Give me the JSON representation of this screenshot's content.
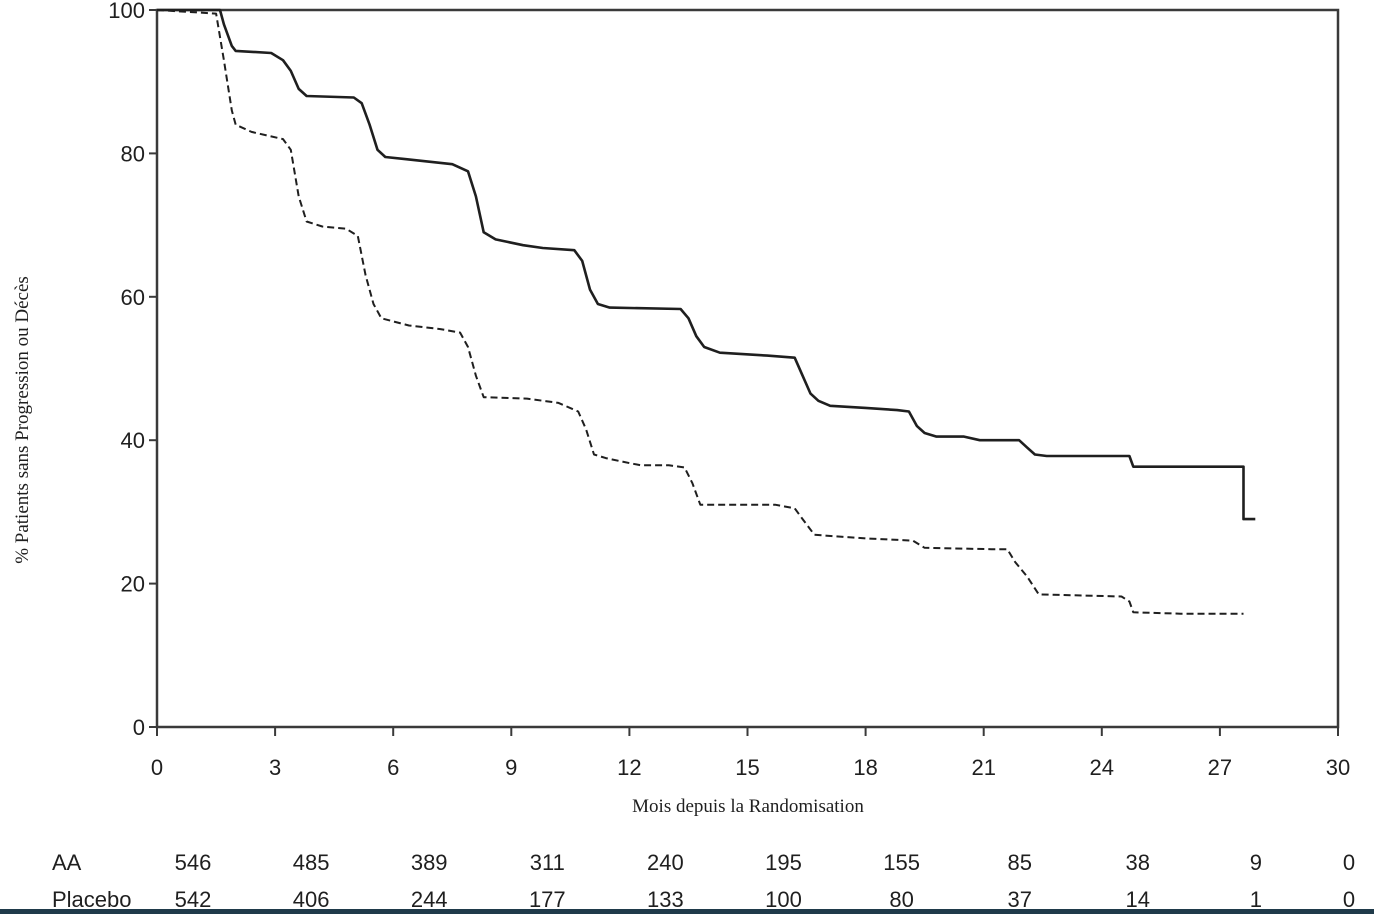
{
  "chart_data": {
    "type": "line",
    "title": "",
    "xlabel": "Mois depuis la Randomisation",
    "ylabel": "% Patients sans Progression ou Décès",
    "xlim": [
      0,
      30
    ],
    "ylim": [
      0,
      100
    ],
    "x_ticks": [
      0,
      3,
      6,
      9,
      12,
      15,
      18,
      21,
      24,
      27,
      30
    ],
    "y_ticks": [
      0,
      20,
      40,
      60,
      80,
      100
    ],
    "grid": false,
    "legend": "none",
    "series": [
      {
        "line_style": "solid",
        "color": "#1f1f1f",
        "points": [
          [
            0,
            100
          ],
          [
            1.6,
            100
          ],
          [
            1.7,
            98
          ],
          [
            1.9,
            95
          ],
          [
            2.0,
            94.3
          ],
          [
            2.9,
            94
          ],
          [
            3.2,
            93
          ],
          [
            3.4,
            91.5
          ],
          [
            3.6,
            89
          ],
          [
            3.8,
            88
          ],
          [
            5.0,
            87.8
          ],
          [
            5.2,
            87
          ],
          [
            5.4,
            84
          ],
          [
            5.6,
            80.5
          ],
          [
            5.8,
            79.5
          ],
          [
            6.3,
            79.2
          ],
          [
            7.5,
            78.5
          ],
          [
            7.9,
            77.5
          ],
          [
            8.1,
            74
          ],
          [
            8.3,
            69
          ],
          [
            8.6,
            68
          ],
          [
            9.3,
            67.2
          ],
          [
            9.8,
            66.8
          ],
          [
            10.6,
            66.5
          ],
          [
            10.8,
            65
          ],
          [
            11.0,
            61
          ],
          [
            11.2,
            59
          ],
          [
            11.5,
            58.5
          ],
          [
            13.3,
            58.3
          ],
          [
            13.5,
            57
          ],
          [
            13.7,
            54.5
          ],
          [
            13.9,
            53
          ],
          [
            14.3,
            52.2
          ],
          [
            15.5,
            51.8
          ],
          [
            16.2,
            51.5
          ],
          [
            16.4,
            49
          ],
          [
            16.6,
            46.5
          ],
          [
            16.8,
            45.5
          ],
          [
            17.1,
            44.8
          ],
          [
            18.0,
            44.5
          ],
          [
            18.8,
            44.2
          ],
          [
            19.1,
            44
          ],
          [
            19.3,
            42
          ],
          [
            19.5,
            41
          ],
          [
            19.8,
            40.5
          ],
          [
            20.5,
            40.5
          ],
          [
            20.9,
            40
          ],
          [
            21.9,
            40
          ],
          [
            22.1,
            39
          ],
          [
            22.3,
            38
          ],
          [
            22.6,
            37.8
          ],
          [
            24.7,
            37.8
          ],
          [
            24.8,
            36.3
          ],
          [
            27.1,
            36.3
          ],
          [
            27.6,
            36.3
          ],
          [
            27.6,
            29
          ],
          [
            27.9,
            29
          ]
        ]
      },
      {
        "line_style": "dashed",
        "color": "#1f1f1f",
        "points": [
          [
            0,
            100
          ],
          [
            1.5,
            99.5
          ],
          [
            1.7,
            93
          ],
          [
            1.9,
            86
          ],
          [
            2.0,
            84
          ],
          [
            2.4,
            83
          ],
          [
            2.8,
            82.5
          ],
          [
            3.2,
            82
          ],
          [
            3.4,
            80.5
          ],
          [
            3.6,
            74
          ],
          [
            3.8,
            70.5
          ],
          [
            4.2,
            69.8
          ],
          [
            4.8,
            69.5
          ],
          [
            5.1,
            68.5
          ],
          [
            5.3,
            63
          ],
          [
            5.5,
            59
          ],
          [
            5.7,
            57
          ],
          [
            6.4,
            56
          ],
          [
            7.2,
            55.5
          ],
          [
            7.7,
            55
          ],
          [
            7.9,
            53
          ],
          [
            8.1,
            49
          ],
          [
            8.3,
            46
          ],
          [
            9.4,
            45.8
          ],
          [
            10.2,
            45.2
          ],
          [
            10.7,
            44
          ],
          [
            10.9,
            41.5
          ],
          [
            11.1,
            38
          ],
          [
            11.4,
            37.5
          ],
          [
            12.0,
            36.8
          ],
          [
            12.3,
            36.5
          ],
          [
            13.0,
            36.5
          ],
          [
            13.4,
            36.2
          ],
          [
            13.6,
            34
          ],
          [
            13.8,
            31
          ],
          [
            15.7,
            31
          ],
          [
            16.2,
            30.5
          ],
          [
            16.4,
            29
          ],
          [
            16.7,
            26.8
          ],
          [
            18.0,
            26.3
          ],
          [
            19.2,
            26
          ],
          [
            19.5,
            25
          ],
          [
            21.2,
            24.8
          ],
          [
            21.6,
            24.8
          ],
          [
            21.8,
            23
          ],
          [
            22.1,
            21
          ],
          [
            22.4,
            18.5
          ],
          [
            24.5,
            18.2
          ],
          [
            24.7,
            17.5
          ],
          [
            24.8,
            16
          ],
          [
            26.0,
            15.8
          ],
          [
            27.6,
            15.8
          ]
        ]
      }
    ],
    "risk_table": {
      "times": [
        0,
        3,
        6,
        9,
        12,
        15,
        18,
        21,
        24,
        27,
        30
      ],
      "rows": [
        {
          "label": "AA",
          "values": [
            "546",
            "485",
            "389",
            "311",
            "240",
            "195",
            "155",
            "85",
            "38",
            "9",
            "0"
          ]
        },
        {
          "label": "Placebo",
          "values": [
            "542",
            "406",
            "244",
            "177",
            "133",
            "100",
            "80",
            "37",
            "14",
            "1",
            "0"
          ]
        }
      ]
    }
  }
}
